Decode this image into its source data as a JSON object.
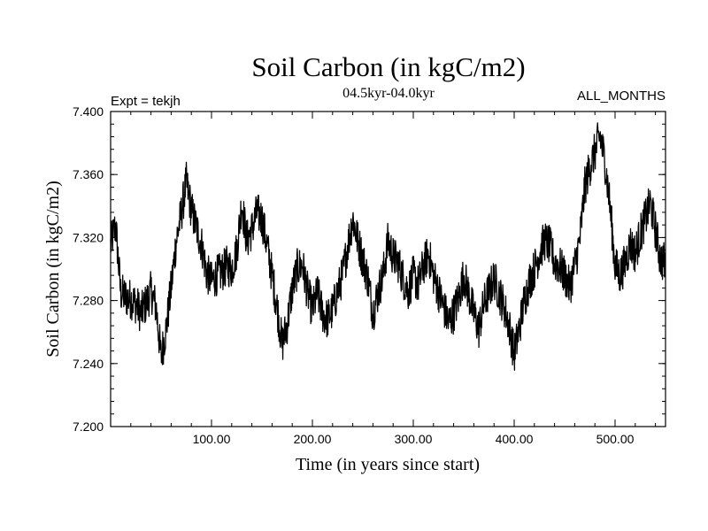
{
  "chart_data": {
    "type": "line",
    "title": "Soil Carbon (in kgC/m2)",
    "subtitle": "04.5kyr-04.0kyr",
    "left_note": "Expt = tekjh",
    "right_note": "ALL_MONTHS",
    "xlabel": "Time (in years since start)",
    "ylabel": "Soil Carbon (in kgC/m2)",
    "xlim": [
      0,
      550
    ],
    "ylim": [
      7.2,
      7.4
    ],
    "x_ticks": [
      100,
      200,
      300,
      400,
      500
    ],
    "x_tick_labels": [
      "100.00",
      "200.00",
      "300.00",
      "400.00",
      "500.00"
    ],
    "y_ticks": [
      7.2,
      7.24,
      7.28,
      7.32,
      7.36,
      7.4
    ],
    "y_tick_labels": [
      "7.200",
      "7.240",
      "7.280",
      "7.320",
      "7.360",
      "7.400"
    ],
    "series": [
      {
        "name": "Soil Carbon",
        "x": [
          0,
          5,
          10,
          15,
          20,
          25,
          30,
          35,
          40,
          45,
          50,
          55,
          60,
          65,
          70,
          75,
          80,
          85,
          90,
          95,
          100,
          105,
          110,
          115,
          120,
          125,
          130,
          135,
          140,
          145,
          150,
          155,
          160,
          165,
          170,
          175,
          180,
          185,
          190,
          195,
          200,
          205,
          210,
          215,
          220,
          225,
          230,
          235,
          240,
          245,
          250,
          255,
          260,
          265,
          270,
          275,
          280,
          285,
          290,
          295,
          300,
          305,
          310,
          315,
          320,
          325,
          330,
          335,
          340,
          345,
          350,
          355,
          360,
          365,
          370,
          375,
          380,
          385,
          390,
          395,
          400,
          405,
          410,
          415,
          420,
          425,
          430,
          435,
          440,
          445,
          450,
          455,
          460,
          465,
          470,
          475,
          480,
          485,
          490,
          495,
          500,
          505,
          510,
          515,
          520,
          525,
          530,
          535,
          540,
          545,
          550
        ],
        "values": [
          7.315,
          7.328,
          7.285,
          7.282,
          7.281,
          7.278,
          7.272,
          7.278,
          7.286,
          7.276,
          7.244,
          7.262,
          7.288,
          7.318,
          7.335,
          7.355,
          7.338,
          7.326,
          7.316,
          7.298,
          7.292,
          7.296,
          7.298,
          7.302,
          7.3,
          7.312,
          7.342,
          7.318,
          7.325,
          7.336,
          7.332,
          7.315,
          7.296,
          7.276,
          7.252,
          7.265,
          7.287,
          7.3,
          7.303,
          7.286,
          7.274,
          7.285,
          7.272,
          7.268,
          7.274,
          7.286,
          7.296,
          7.315,
          7.332,
          7.318,
          7.306,
          7.294,
          7.272,
          7.285,
          7.296,
          7.318,
          7.308,
          7.304,
          7.294,
          7.286,
          7.296,
          7.29,
          7.302,
          7.31,
          7.296,
          7.286,
          7.276,
          7.266,
          7.272,
          7.282,
          7.296,
          7.284,
          7.272,
          7.262,
          7.278,
          7.286,
          7.294,
          7.285,
          7.276,
          7.264,
          7.246,
          7.262,
          7.28,
          7.292,
          7.3,
          7.31,
          7.318,
          7.315,
          7.304,
          7.302,
          7.296,
          7.288,
          7.302,
          7.318,
          7.352,
          7.365,
          7.374,
          7.385,
          7.368,
          7.34,
          7.302,
          7.296,
          7.304,
          7.316,
          7.31,
          7.322,
          7.332,
          7.342,
          7.325,
          7.306,
          7.304
        ]
      }
    ]
  }
}
